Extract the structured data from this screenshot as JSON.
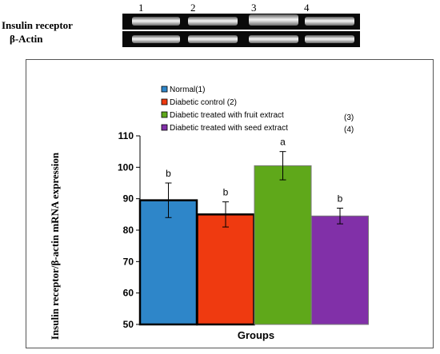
{
  "gel": {
    "row_labels": [
      "Insulin receptor",
      "β-Actin"
    ],
    "lanes": [
      "1",
      "2",
      "3",
      "4"
    ]
  },
  "chart_data": {
    "type": "bar",
    "categories": [
      "Normal",
      "Diabetic control",
      "Diabetic treated with fruit extract",
      "Diabetic treated with seed extract"
    ],
    "legend": [
      "Normal(1)",
      "Diabetic control  (2)",
      "Diabetic treated with fruit extract",
      "Diabetic treated with seed extract"
    ],
    "legend_suffix": [
      "",
      "",
      "(3)",
      "(4)"
    ],
    "values": [
      89.5,
      85,
      100.5,
      84.5
    ],
    "errors": [
      5.5,
      4,
      4.5,
      2.5
    ],
    "significance": [
      "b",
      "b",
      "a",
      "b"
    ],
    "colors": [
      "#2e86c9",
      "#ef3a10",
      "#5fa81a",
      "#8130a8"
    ],
    "xlabel": "Groups",
    "ylabel": "Insulin receptor/β-actin mRNA expression",
    "ylim": [
      50,
      110
    ],
    "yticks": [
      50,
      60,
      70,
      80,
      90,
      100,
      110
    ]
  }
}
